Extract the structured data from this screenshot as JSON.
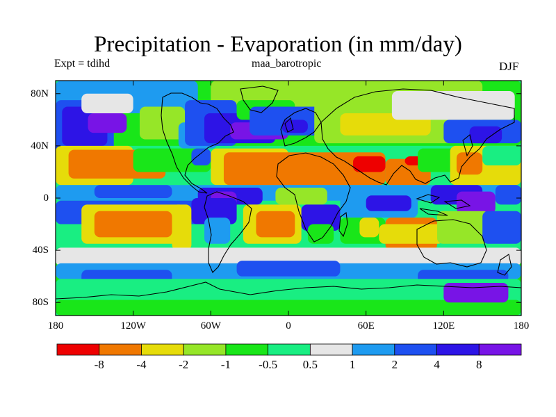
{
  "title": "Precipitation - Evaporation (in mm/day)",
  "subtitle_left": "Expt = tdihd",
  "subtitle_center": "maa_barotropic",
  "subtitle_right": "DJF",
  "chart_data": {
    "type": "heatmap",
    "projection": "cylindrical-equidistant",
    "variable": "Precipitation - Evaporation",
    "units": "mm/day",
    "season": "DJF",
    "x_range": [
      -180,
      180
    ],
    "y_range": [
      -90,
      90
    ],
    "x_tick_values": [
      -180,
      -120,
      -60,
      0,
      60,
      120,
      180
    ],
    "x_tick_labels": [
      "180",
      "120W",
      "60W",
      "0",
      "60E",
      "120E",
      "180"
    ],
    "y_tick_values": [
      80,
      40,
      0,
      -40,
      -80
    ],
    "y_tick_labels": [
      "80N",
      "40N",
      "0",
      "40S",
      "80S"
    ],
    "colorbar": {
      "colors": [
        "#ee0000",
        "#f07800",
        "#e6dc0a",
        "#96e628",
        "#19e619",
        "#19ee82",
        "#e6e6e6",
        "#1e9bf0",
        "#1e50f0",
        "#2d14e6",
        "#7814e6"
      ],
      "boundaries": [
        -8,
        -4,
        -2,
        -1,
        -0.5,
        0.5,
        1,
        2,
        4,
        8
      ],
      "labels": [
        "-8",
        "-4",
        "-2",
        "-1",
        "-0.5",
        "0.5",
        "1",
        "2",
        "4",
        "8"
      ]
    },
    "approximate_patches": [
      {
        "lon": [
          -180,
          180
        ],
        "lat": [
          -90,
          90
        ],
        "color_index": 5
      },
      {
        "lon": [
          -180,
          180
        ],
        "lat": [
          -75,
          -40
        ],
        "color_index": 4
      },
      {
        "lon": [
          -180,
          180
        ],
        "lat": [
          40,
          90
        ],
        "color_index": 4
      },
      {
        "lon": [
          -180,
          -70
        ],
        "lat": [
          65,
          90
        ],
        "color_index": 7
      },
      {
        "lon": [
          -60,
          150
        ],
        "lat": [
          70,
          90
        ],
        "color_index": 3
      },
      {
        "lon": [
          -180,
          -135
        ],
        "lat": [
          35,
          75
        ],
        "color_index": 8
      },
      {
        "lon": [
          -175,
          -140
        ],
        "lat": [
          40,
          70
        ],
        "color_index": 9
      },
      {
        "lon": [
          -155,
          -125
        ],
        "lat": [
          50,
          65
        ],
        "color_index": 10
      },
      {
        "lon": [
          -160,
          -120
        ],
        "lat": [
          65,
          80
        ],
        "color_index": 6
      },
      {
        "lon": [
          -115,
          -80
        ],
        "lat": [
          45,
          70
        ],
        "color_index": 3
      },
      {
        "lon": [
          -85,
          -55
        ],
        "lat": [
          38,
          58
        ],
        "color_index": 7
      },
      {
        "lon": [
          -80,
          -40
        ],
        "lat": [
          40,
          75
        ],
        "color_index": 8
      },
      {
        "lon": [
          -65,
          -10
        ],
        "lat": [
          42,
          65
        ],
        "color_index": 9
      },
      {
        "lon": [
          -45,
          0
        ],
        "lat": [
          45,
          58
        ],
        "color_index": 10
      },
      {
        "lon": [
          -40,
          5
        ],
        "lat": [
          60,
          75
        ],
        "color_index": 4
      },
      {
        "lon": [
          -30,
          45
        ],
        "lat": [
          48,
          70
        ],
        "color_index": 8
      },
      {
        "lon": [
          -5,
          15
        ],
        "lat": [
          50,
          60
        ],
        "color_index": 9
      },
      {
        "lon": [
          20,
          150
        ],
        "lat": [
          42,
          75
        ],
        "color_index": 3
      },
      {
        "lon": [
          40,
          110
        ],
        "lat": [
          48,
          65
        ],
        "color_index": 2
      },
      {
        "lon": [
          80,
          175
        ],
        "lat": [
          60,
          82
        ],
        "color_index": 6
      },
      {
        "lon": [
          120,
          180
        ],
        "lat": [
          42,
          60
        ],
        "color_index": 8
      },
      {
        "lon": [
          140,
          165
        ],
        "lat": [
          42,
          55
        ],
        "color_index": 9
      },
      {
        "lon": [
          -180,
          -120
        ],
        "lat": [
          10,
          40
        ],
        "color_index": 2
      },
      {
        "lon": [
          -170,
          -95
        ],
        "lat": [
          15,
          37
        ],
        "color_index": 1
      },
      {
        "lon": [
          -120,
          -60
        ],
        "lat": [
          20,
          38
        ],
        "color_index": 4
      },
      {
        "lon": [
          -75,
          -60
        ],
        "lat": [
          25,
          38
        ],
        "color_index": 8
      },
      {
        "lon": [
          -60,
          0
        ],
        "lat": [
          10,
          38
        ],
        "color_index": 2
      },
      {
        "lon": [
          -50,
          75
        ],
        "lat": [
          10,
          35
        ],
        "color_index": 1
      },
      {
        "lon": [
          50,
          75
        ],
        "lat": [
          20,
          32
        ],
        "color_index": 0
      },
      {
        "lon": [
          75,
          110
        ],
        "lat": [
          10,
          30
        ],
        "color_index": 1
      },
      {
        "lon": [
          90,
          105
        ],
        "lat": [
          25,
          32
        ],
        "color_index": 0
      },
      {
        "lon": [
          100,
          140
        ],
        "lat": [
          20,
          38
        ],
        "color_index": 4
      },
      {
        "lon": [
          125,
          180
        ],
        "lat": [
          10,
          40
        ],
        "color_index": 2
      },
      {
        "lon": [
          130,
          150
        ],
        "lat": [
          18,
          35
        ],
        "color_index": 1
      },
      {
        "lon": [
          150,
          180
        ],
        "lat": [
          25,
          40
        ],
        "color_index": 5
      },
      {
        "lon": [
          -180,
          180
        ],
        "lat": [
          -2,
          10
        ],
        "color_index": 7
      },
      {
        "lon": [
          -150,
          -90
        ],
        "lat": [
          0,
          10
        ],
        "color_index": 8
      },
      {
        "lon": [
          -70,
          -20
        ],
        "lat": [
          -5,
          8
        ],
        "color_index": 9
      },
      {
        "lon": [
          -60,
          -40
        ],
        "lat": [
          -10,
          5
        ],
        "color_index": 10
      },
      {
        "lon": [
          -10,
          30
        ],
        "lat": [
          -5,
          8
        ],
        "color_index": 3
      },
      {
        "lon": [
          40,
          100
        ],
        "lat": [
          -15,
          8
        ],
        "color_index": 7
      },
      {
        "lon": [
          60,
          95
        ],
        "lat": [
          -10,
          2
        ],
        "color_index": 9
      },
      {
        "lon": [
          110,
          150
        ],
        "lat": [
          -5,
          10
        ],
        "color_index": 9
      },
      {
        "lon": [
          130,
          160
        ],
        "lat": [
          -12,
          5
        ],
        "color_index": 10
      },
      {
        "lon": [
          160,
          180
        ],
        "lat": [
          -5,
          10
        ],
        "color_index": 8
      },
      {
        "lon": [
          -180,
          -60
        ],
        "lat": [
          -20,
          -2
        ],
        "color_index": 8
      },
      {
        "lon": [
          -160,
          -80
        ],
        "lat": [
          -35,
          -5
        ],
        "color_index": 2
      },
      {
        "lon": [
          -150,
          -90
        ],
        "lat": [
          -30,
          -10
        ],
        "color_index": 1
      },
      {
        "lon": [
          -90,
          -75
        ],
        "lat": [
          -40,
          -5
        ],
        "color_index": 2
      },
      {
        "lon": [
          -75,
          -40
        ],
        "lat": [
          -20,
          0
        ],
        "color_index": 9
      },
      {
        "lon": [
          -65,
          -45
        ],
        "lat": [
          -35,
          -15
        ],
        "color_index": 7
      },
      {
        "lon": [
          -35,
          10
        ],
        "lat": [
          -35,
          -5
        ],
        "color_index": 2
      },
      {
        "lon": [
          -25,
          5
        ],
        "lat": [
          -30,
          -10
        ],
        "color_index": 1
      },
      {
        "lon": [
          10,
          40
        ],
        "lat": [
          -25,
          -5
        ],
        "color_index": 9
      },
      {
        "lon": [
          15,
          35
        ],
        "lat": [
          -35,
          -20
        ],
        "color_index": 4
      },
      {
        "lon": [
          40,
          75
        ],
        "lat": [
          -35,
          -15
        ],
        "color_index": 4
      },
      {
        "lon": [
          55,
          70
        ],
        "lat": [
          -30,
          -15
        ],
        "color_index": 2
      },
      {
        "lon": [
          75,
          115
        ],
        "lat": [
          -40,
          -15
        ],
        "color_index": 1
      },
      {
        "lon": [
          70,
          120
        ],
        "lat": [
          -35,
          -20
        ],
        "color_index": 2
      },
      {
        "lon": [
          115,
          155
        ],
        "lat": [
          -35,
          -10
        ],
        "color_index": 3
      },
      {
        "lon": [
          150,
          180
        ],
        "lat": [
          -35,
          -10
        ],
        "color_index": 8
      },
      {
        "lon": [
          -180,
          180
        ],
        "lat": [
          -52,
          -38
        ],
        "color_index": 6
      },
      {
        "lon": [
          -180,
          180
        ],
        "lat": [
          -62,
          -50
        ],
        "color_index": 7
      },
      {
        "lon": [
          -160,
          -90
        ],
        "lat": [
          -68,
          -55
        ],
        "color_index": 8
      },
      {
        "lon": [
          -40,
          40
        ],
        "lat": [
          -60,
          -48
        ],
        "color_index": 8
      },
      {
        "lon": [
          100,
          170
        ],
        "lat": [
          -65,
          -55
        ],
        "color_index": 8
      },
      {
        "lon": [
          -180,
          180
        ],
        "lat": [
          -80,
          -62
        ],
        "color_index": 5
      },
      {
        "lon": [
          -180,
          180
        ],
        "lat": [
          -90,
          -78
        ],
        "color_index": 4
      },
      {
        "lon": [
          120,
          170
        ],
        "lat": [
          -80,
          -65
        ],
        "color_index": 10
      }
    ]
  }
}
